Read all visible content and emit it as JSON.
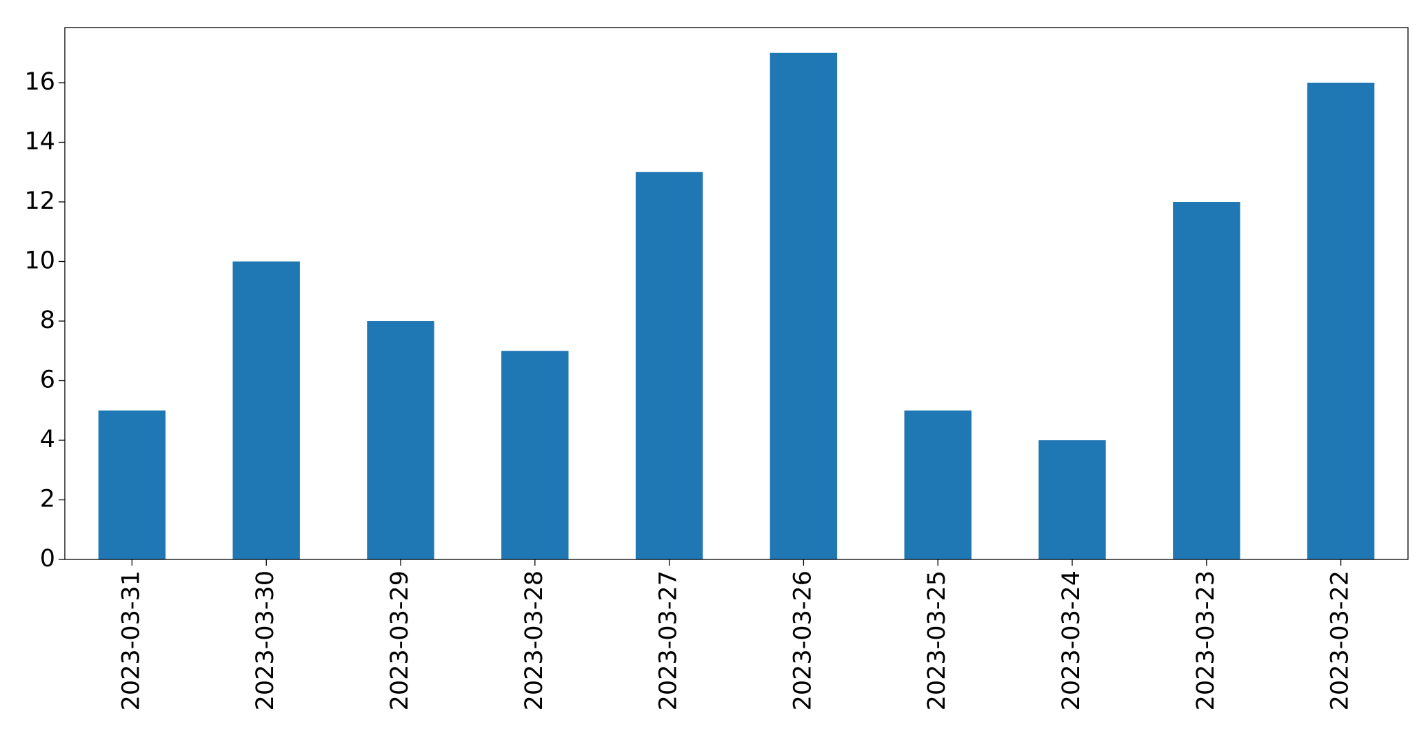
{
  "chart_data": {
    "type": "bar",
    "categories": [
      "2023-03-31",
      "2023-03-30",
      "2023-03-29",
      "2023-03-28",
      "2023-03-27",
      "2023-03-26",
      "2023-03-25",
      "2023-03-24",
      "2023-03-23",
      "2023-03-22"
    ],
    "values": [
      5,
      10,
      8,
      7,
      13,
      17,
      5,
      4,
      12,
      16
    ],
    "color": "#1f77b4",
    "ylim": [
      0,
      17.85
    ],
    "yticks": [
      0,
      2,
      4,
      6,
      8,
      10,
      12,
      14,
      16
    ],
    "grid": false
  }
}
